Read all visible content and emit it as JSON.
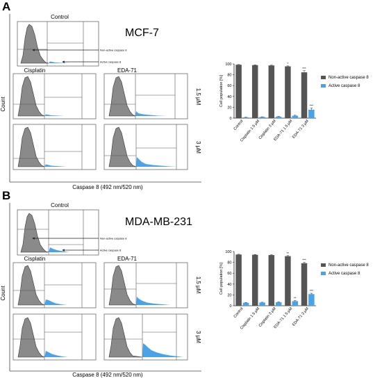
{
  "panels": [
    {
      "letter": "A",
      "cell_line": "MCF-7",
      "control_label": "Control",
      "drug1_label": "Cisplatin",
      "drug2_label": "EDA-71",
      "dose1": "1.5 µM",
      "dose2": "3 µM",
      "gate_nonactive": "Non-active caspase 8",
      "gate_active": "Active caspase 8",
      "y_axis": "Count",
      "x_axis": "Caspase 8 (492 nm/520 nm)"
    },
    {
      "letter": "B",
      "cell_line": "MDA-MB-231",
      "control_label": "Control",
      "drug1_label": "Cisplatin",
      "drug2_label": "EDA-71",
      "dose1": "1.5 µM",
      "dose2": "3 µM",
      "gate_nonactive": "Non-active caspase 8",
      "gate_active": "Active caspase 8",
      "y_axis": "Count",
      "x_axis": "Caspase 8 (492 nm/520 nm)"
    }
  ],
  "chart_data": [
    {
      "type": "bar",
      "ylabel": "Cell population [%]",
      "ylim": [
        0,
        100
      ],
      "yticks": [
        "0",
        "20",
        "40",
        "60",
        "80",
        "100"
      ],
      "categories": [
        "Control",
        "Cisplatin 1.5 µM",
        "Cisplatin 3 µM",
        "EDA-71 1.5 µM",
        "EDA-71 3 µM"
      ],
      "series": [
        {
          "name": "Non-active caspase 8",
          "values": [
            98.5,
            97.8,
            97.2,
            95.5,
            84.5
          ],
          "errors": [
            0.4,
            0.4,
            0.5,
            0.8,
            3.0
          ],
          "sig": [
            "",
            "",
            "",
            "*",
            "***"
          ]
        },
        {
          "name": "Active caspase 8",
          "values": [
            1.5,
            2.2,
            2.8,
            4.5,
            15.5
          ],
          "errors": [
            0.3,
            0.3,
            0.4,
            0.8,
            3.0
          ],
          "sig": [
            "",
            "",
            "",
            "",
            "***"
          ]
        }
      ],
      "colors": [
        "#555555",
        "#4aa3e8"
      ],
      "legend_position": "right",
      "grid": false
    },
    {
      "type": "bar",
      "ylabel": "Cell population [%]",
      "ylim": [
        0,
        100
      ],
      "yticks": [
        "0",
        "20",
        "40",
        "60",
        "80",
        "100"
      ],
      "categories": [
        "Control",
        "Cisplatin 1.5 µM",
        "Cisplatin 3 µM",
        "EDA-71 1.5 µM",
        "EDA-71 3 µM"
      ],
      "series": [
        {
          "name": "Non-active caspase 8",
          "values": [
            94.5,
            94.0,
            93.5,
            91.5,
            78.5
          ],
          "errors": [
            0.5,
            0.5,
            0.5,
            1.0,
            1.5
          ],
          "sig": [
            "",
            "",
            "",
            "**",
            "***"
          ]
        },
        {
          "name": "Active caspase 8",
          "values": [
            5.5,
            6.0,
            6.5,
            8.5,
            21.5
          ],
          "errors": [
            0.5,
            0.5,
            0.5,
            1.0,
            1.5
          ],
          "sig": [
            "",
            "",
            "",
            "**",
            "***"
          ]
        }
      ],
      "colors": [
        "#555555",
        "#4aa3e8"
      ],
      "legend_position": "right",
      "grid": false
    }
  ]
}
